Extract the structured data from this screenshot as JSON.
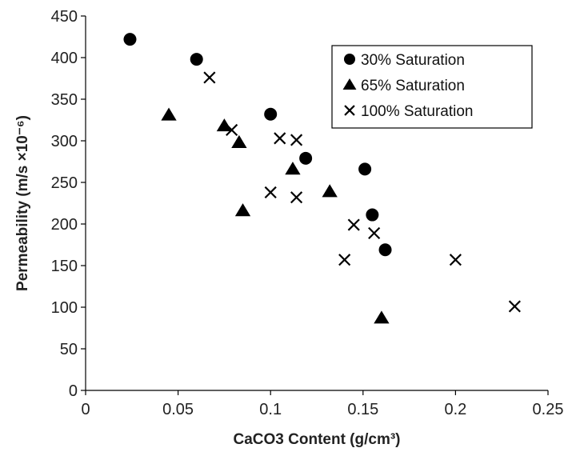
{
  "chart_data": {
    "type": "scatter",
    "xlabel": "CaCO3 Content  (g/cm³)",
    "ylabel": "Permeability  (m/s ×10⁻⁶)",
    "xlim": [
      0,
      0.25
    ],
    "ylim": [
      0,
      450
    ],
    "x_ticks": [
      0,
      0.05,
      0.1,
      0.15,
      0.2,
      0.25
    ],
    "x_tick_labels": [
      "0",
      "0.05",
      "0.1",
      "0.15",
      "0.2",
      "0.25"
    ],
    "y_ticks": [
      0,
      50,
      100,
      150,
      200,
      250,
      300,
      350,
      400,
      450
    ],
    "y_tick_labels": [
      "0",
      "50",
      "100",
      "150",
      "200",
      "250",
      "300",
      "350",
      "400",
      "450"
    ],
    "grid": false,
    "legend_position": "top-right",
    "series": [
      {
        "name": "30% Saturation",
        "marker": "circle",
        "color": "#000000",
        "x": [
          0.024,
          0.06,
          0.1,
          0.119,
          0.151,
          0.155,
          0.162
        ],
        "y": [
          422,
          398,
          332,
          279,
          266,
          211,
          169
        ]
      },
      {
        "name": "65% Saturation",
        "marker": "triangle",
        "color": "#000000",
        "x": [
          0.045,
          0.075,
          0.083,
          0.085,
          0.112,
          0.132,
          0.16
        ],
        "y": [
          331,
          318,
          298,
          216,
          266,
          239,
          87
        ]
      },
      {
        "name": "100% Saturation",
        "marker": "x",
        "color": "#000000",
        "x": [
          0.067,
          0.079,
          0.1,
          0.105,
          0.114,
          0.114,
          0.14,
          0.145,
          0.156,
          0.2,
          0.232
        ],
        "y": [
          376,
          313,
          238,
          303,
          301,
          232,
          157,
          199,
          189,
          157,
          101
        ]
      }
    ]
  }
}
